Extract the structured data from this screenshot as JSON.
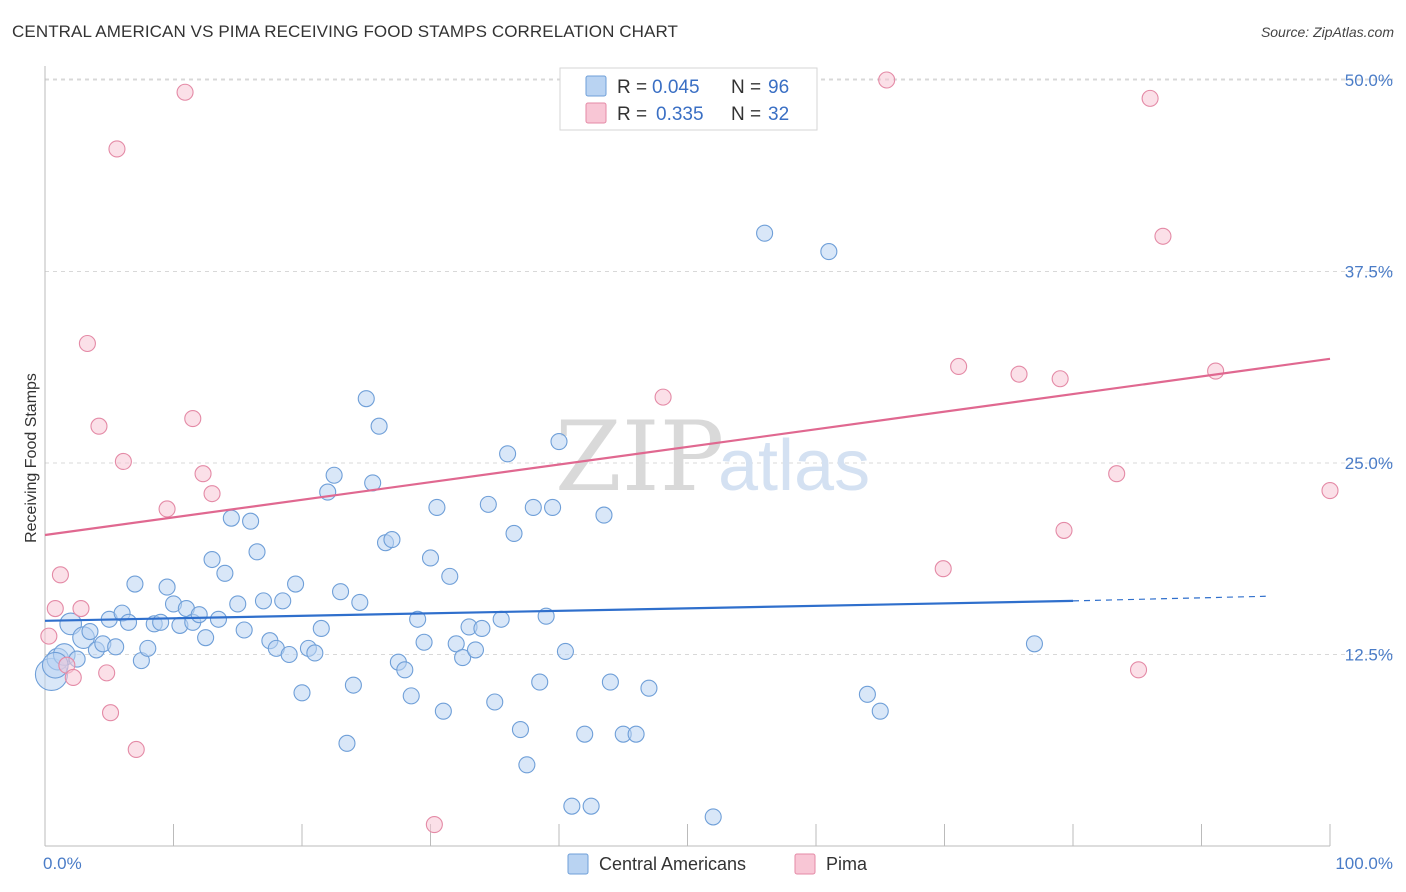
{
  "title": "CENTRAL AMERICAN VS PIMA RECEIVING FOOD STAMPS CORRELATION CHART",
  "source": "Source: ZipAtlas.com",
  "watermark": {
    "zip": "ZIP",
    "atlas": "atlas"
  },
  "legend": {
    "rows": [
      {
        "r_label": "R =",
        "r_value": "0.045",
        "n_label": "N =",
        "n_value": "96"
      },
      {
        "r_label": "R =",
        "r_value": "0.335",
        "n_label": "N =",
        "n_value": "32"
      }
    ]
  },
  "bottom_legend": [
    "Central Americans",
    "Pima"
  ],
  "colors": {
    "blue_fill": "#b9d3f2",
    "blue_stroke": "#6f9fd8",
    "blue_line": "#2f6fcc",
    "pink_fill": "#f8c6d5",
    "pink_stroke": "#e48aa6",
    "pink_line": "#e06890",
    "grid": "#d8d8d8",
    "axis_text": "#4a7cc7"
  },
  "chart_data": {
    "type": "scatter",
    "title": "CENTRAL AMERICAN VS PIMA RECEIVING FOOD STAMPS CORRELATION CHART",
    "xlabel": "",
    "ylabel": "Receiving Food Stamps",
    "xlim": [
      0,
      100
    ],
    "ylim": [
      0,
      50
    ],
    "x_tick_labels": [
      "0.0%",
      "100.0%"
    ],
    "y_ticks": [
      12.5,
      25.0,
      37.5,
      50.0
    ],
    "y_tick_labels": [
      "12.5%",
      "25.0%",
      "37.5%",
      "50.0%"
    ],
    "grid": "horizontal dashed",
    "legend_position": "top-center",
    "series": [
      {
        "name": "Central Americans",
        "r": 0.045,
        "n": 96,
        "trend": {
          "x0": 0,
          "y0": 14.7,
          "x1": 80,
          "y1": 16.0,
          "dashed_to_x": 95,
          "dashed_to_y": 16.3
        },
        "points": [
          [
            0.5,
            11.2,
            3
          ],
          [
            1,
            12.2,
            1.5
          ],
          [
            1.5,
            12.5,
            1.5
          ],
          [
            2,
            14.5,
            1.5
          ],
          [
            2.5,
            12.2,
            1
          ],
          [
            3,
            13.6,
            1.5
          ],
          [
            3.5,
            14.0,
            1
          ],
          [
            4,
            12.8,
            1
          ],
          [
            4.5,
            13.2,
            1
          ],
          [
            5,
            14.8,
            1
          ],
          [
            5.5,
            13.0,
            1
          ],
          [
            6,
            15.2,
            1
          ],
          [
            6.5,
            14.6,
            1
          ],
          [
            7,
            17.1,
            1
          ],
          [
            7.5,
            12.1,
            1
          ],
          [
            8,
            12.9,
            1
          ],
          [
            8.5,
            14.5,
            1
          ],
          [
            9,
            14.6,
            1
          ],
          [
            9.5,
            16.9,
            1
          ],
          [
            10,
            15.8,
            1
          ],
          [
            10.5,
            14.4,
            1
          ],
          [
            11,
            15.5,
            1
          ],
          [
            11.5,
            14.6,
            1
          ],
          [
            12,
            15.1,
            1
          ],
          [
            12.5,
            13.6,
            1
          ],
          [
            13,
            18.7,
            1
          ],
          [
            13.5,
            14.8,
            1
          ],
          [
            14,
            17.8,
            1
          ],
          [
            14.5,
            21.4,
            1
          ],
          [
            15,
            15.8,
            1
          ],
          [
            15.5,
            14.1,
            1
          ],
          [
            16,
            21.2,
            1
          ],
          [
            16.5,
            19.2,
            1
          ],
          [
            17,
            16.0,
            1
          ],
          [
            17.5,
            13.4,
            1
          ],
          [
            18,
            12.9,
            1
          ],
          [
            18.5,
            16.0,
            1
          ],
          [
            19,
            12.5,
            1
          ],
          [
            19.5,
            17.1,
            1
          ],
          [
            20,
            10.0,
            1
          ],
          [
            20.5,
            12.9,
            1
          ],
          [
            21,
            12.6,
            1
          ],
          [
            21.5,
            14.2,
            1
          ],
          [
            22,
            23.1,
            1
          ],
          [
            22.5,
            24.2,
            1
          ],
          [
            23,
            16.6,
            1
          ],
          [
            23.5,
            6.7,
            1
          ],
          [
            24,
            10.5,
            1
          ],
          [
            24.5,
            15.9,
            1
          ],
          [
            25,
            29.2,
            1
          ],
          [
            25.5,
            23.7,
            1
          ],
          [
            26,
            27.4,
            1
          ],
          [
            26.5,
            19.8,
            1
          ],
          [
            27,
            20.0,
            1
          ],
          [
            27.5,
            12.0,
            1
          ],
          [
            28,
            11.5,
            1
          ],
          [
            28.5,
            9.8,
            1
          ],
          [
            29,
            14.8,
            1
          ],
          [
            29.5,
            13.3,
            1
          ],
          [
            30,
            18.8,
            1
          ],
          [
            30.5,
            22.1,
            1
          ],
          [
            31,
            8.8,
            1
          ],
          [
            31.5,
            17.6,
            1
          ],
          [
            32,
            13.2,
            1
          ],
          [
            32.5,
            12.3,
            1
          ],
          [
            33,
            14.3,
            1
          ],
          [
            33.5,
            12.8,
            1
          ],
          [
            34,
            14.2,
            1
          ],
          [
            34.5,
            22.3,
            1
          ],
          [
            35,
            9.4,
            1
          ],
          [
            35.5,
            14.8,
            1
          ],
          [
            36,
            25.6,
            1
          ],
          [
            36.5,
            20.4,
            1
          ],
          [
            37,
            7.6,
            1
          ],
          [
            37.5,
            5.3,
            1
          ],
          [
            38,
            22.1,
            1
          ],
          [
            38.5,
            10.7,
            1
          ],
          [
            39,
            15.0,
            1
          ],
          [
            39.5,
            22.1,
            1
          ],
          [
            40,
            26.4,
            1
          ],
          [
            40.5,
            12.7,
            1
          ],
          [
            41,
            2.6,
            1
          ],
          [
            42,
            7.3,
            1
          ],
          [
            42.5,
            2.6,
            1
          ],
          [
            43.5,
            21.6,
            1
          ],
          [
            44,
            10.7,
            1
          ],
          [
            45,
            7.3,
            1
          ],
          [
            46,
            7.3,
            1
          ],
          [
            47,
            10.3,
            1
          ],
          [
            52,
            1.9,
            1
          ],
          [
            56,
            40.0,
            1
          ],
          [
            61,
            38.8,
            1
          ],
          [
            64,
            9.9,
            1
          ],
          [
            65,
            8.8,
            1
          ],
          [
            77,
            13.2,
            1
          ],
          [
            0.8,
            11.8,
            2
          ]
        ]
      },
      {
        "name": "Pima",
        "r": 0.335,
        "n": 32,
        "trend": {
          "x0": 0,
          "y0": 20.3,
          "x1": 100,
          "y1": 31.8
        },
        "points": [
          [
            0.3,
            13.7,
            1
          ],
          [
            0.8,
            15.5,
            1
          ],
          [
            1.2,
            17.7,
            1
          ],
          [
            1.7,
            11.8,
            1
          ],
          [
            2.2,
            11.0,
            1
          ],
          [
            2.8,
            15.5,
            1
          ],
          [
            3.3,
            32.8,
            1
          ],
          [
            4.2,
            27.4,
            1
          ],
          [
            4.8,
            11.3,
            1
          ],
          [
            5.1,
            8.7,
            1
          ],
          [
            5.6,
            45.5,
            1
          ],
          [
            6.1,
            25.1,
            1
          ],
          [
            7.1,
            6.3,
            1
          ],
          [
            9.5,
            22.0,
            1
          ],
          [
            10.9,
            49.2,
            1
          ],
          [
            11.5,
            27.9,
            1
          ],
          [
            12.3,
            24.3,
            1
          ],
          [
            13.0,
            23.0,
            1
          ],
          [
            30.3,
            1.4,
            1
          ],
          [
            48.1,
            29.3,
            1
          ],
          [
            65.5,
            50.0,
            1
          ],
          [
            69.9,
            18.1,
            1
          ],
          [
            71.1,
            31.3,
            1
          ],
          [
            75.8,
            30.8,
            1
          ],
          [
            79.0,
            30.5,
            1
          ],
          [
            79.3,
            20.6,
            1
          ],
          [
            83.4,
            24.3,
            1
          ],
          [
            85.1,
            11.5,
            1
          ],
          [
            86.0,
            48.8,
            1
          ],
          [
            87.0,
            39.8,
            1
          ],
          [
            91.1,
            31.0,
            1
          ],
          [
            100.0,
            23.2,
            1
          ]
        ]
      }
    ]
  }
}
